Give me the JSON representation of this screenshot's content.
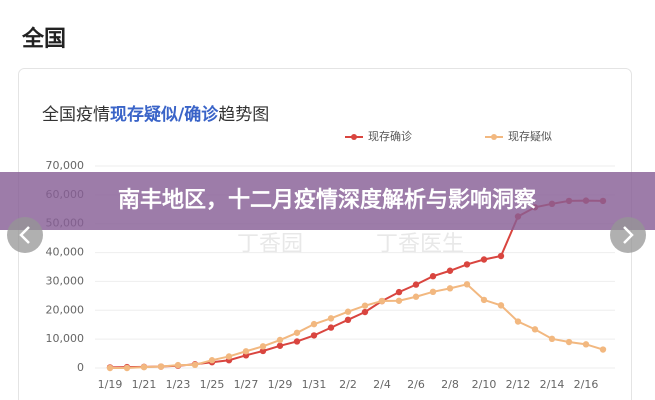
{
  "header": {
    "title": "全国"
  },
  "banner": {
    "title": "南丰地区，十二月疫情深度解析与影响洞察"
  },
  "watermark": [
    "丁香园",
    "丁香医生"
  ],
  "chart_data": {
    "type": "line",
    "title": [
      "全国疫情",
      "现存疑似",
      "/",
      "确诊",
      "趋势图"
    ],
    "categories": [
      "1/19",
      null,
      "1/21",
      null,
      "1/23",
      null,
      "1/25",
      null,
      "1/27",
      null,
      "1/29",
      null,
      "1/31",
      null,
      "2/2",
      null,
      "2/4",
      null,
      "2/6",
      null,
      "2/8",
      null,
      "2/10",
      null,
      "2/12",
      null,
      "2/14",
      null,
      "2/16",
      null
    ],
    "series": [
      {
        "name": "现存确诊",
        "color": "#d9453f",
        "values": [
          200,
          300,
          400,
          500,
          800,
          1300,
          2000,
          2700,
          4400,
          5900,
          7700,
          9200,
          11300,
          14000,
          16700,
          19400,
          23200,
          26300,
          28900,
          31800,
          33700,
          35900,
          37600,
          38800,
          52500,
          55700,
          56900,
          57900,
          58000,
          57900
        ]
      },
      {
        "name": "现存疑似",
        "color": "#f2b880",
        "values": [
          0,
          0,
          300,
          500,
          1000,
          1100,
          2700,
          4000,
          5800,
          7500,
          9700,
          12200,
          15200,
          17200,
          19500,
          21600,
          23200,
          23300,
          24700,
          26400,
          27600,
          29000,
          23600,
          21700,
          16100,
          13400,
          10100,
          9000,
          8200,
          6400
        ]
      }
    ],
    "ylim": [
      0,
      70000
    ],
    "yticks": [
      0,
      {
        "value": 10000,
        "label": "10,000"
      },
      {
        "value": 20000,
        "label": "20,000"
      },
      {
        "value": 30000,
        "label": "30,000"
      },
      {
        "value": 40000,
        "label": "40,000"
      },
      {
        "value": 50000,
        "label": "50,000"
      },
      {
        "value": 60000,
        "label": "60,000"
      },
      {
        "value": 70000,
        "label": "70,000"
      }
    ],
    "grid": true
  }
}
